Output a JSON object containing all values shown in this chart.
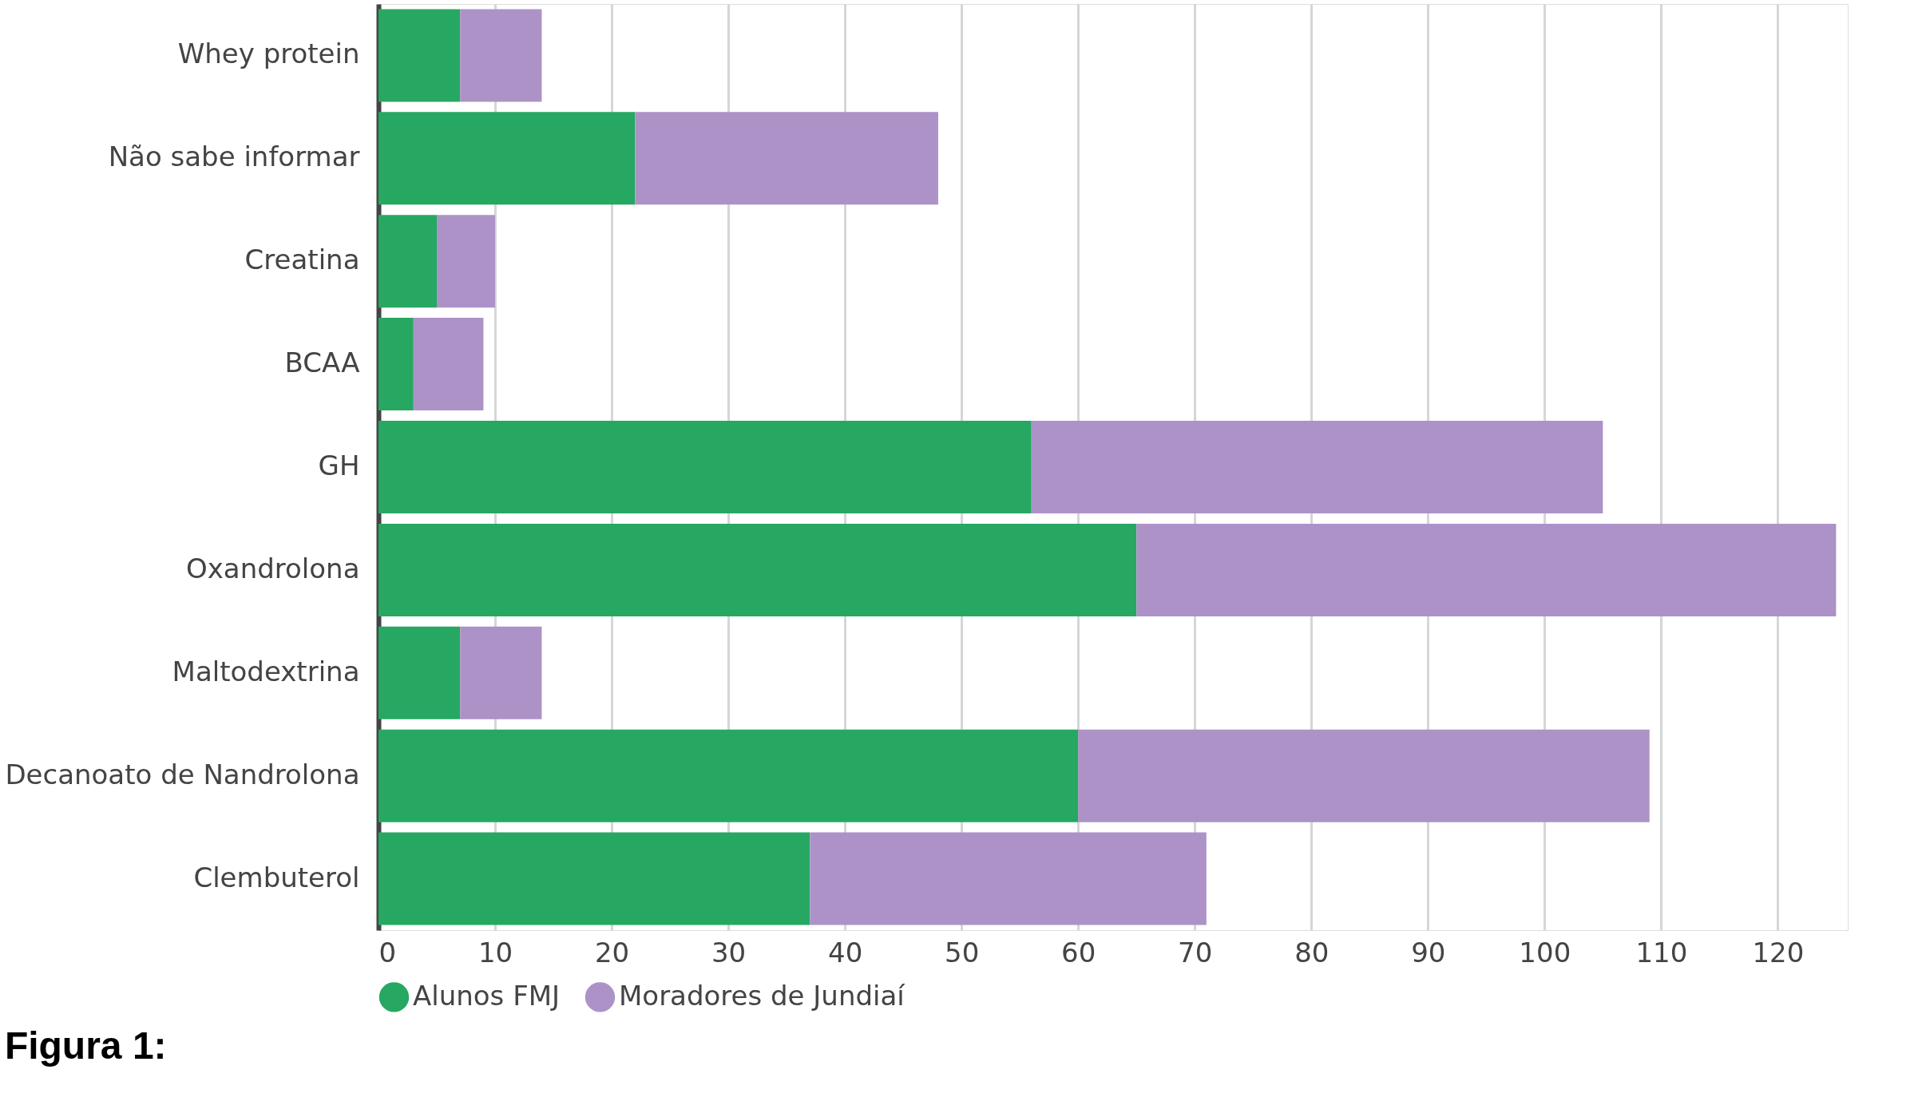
{
  "chart_data": {
    "type": "bar",
    "orientation": "horizontal",
    "stacked": true,
    "categories": [
      "Whey protein",
      "Não sabe informar",
      "Creatina",
      "BCAA",
      "GH",
      "Oxandrolona",
      "Maltodextrina",
      "Decanoato de Nandrolona",
      "Clembuterol"
    ],
    "series": [
      {
        "name": "Alunos FMJ",
        "color": "#26a862",
        "values": [
          7,
          22,
          5,
          3,
          56,
          65,
          7,
          60,
          37
        ]
      },
      {
        "name": "Moradores de Jundiaí",
        "color": "#ad92c7",
        "values": [
          7,
          26,
          5,
          6,
          49,
          60,
          7,
          49,
          34
        ]
      }
    ],
    "xlim": [
      0,
      126
    ],
    "xticks": [
      0,
      10,
      20,
      30,
      40,
      50,
      60,
      70,
      80,
      90,
      100,
      110,
      120
    ],
    "grid": "x",
    "legend": "bottom",
    "annotations": [
      "Figura 1:"
    ]
  }
}
